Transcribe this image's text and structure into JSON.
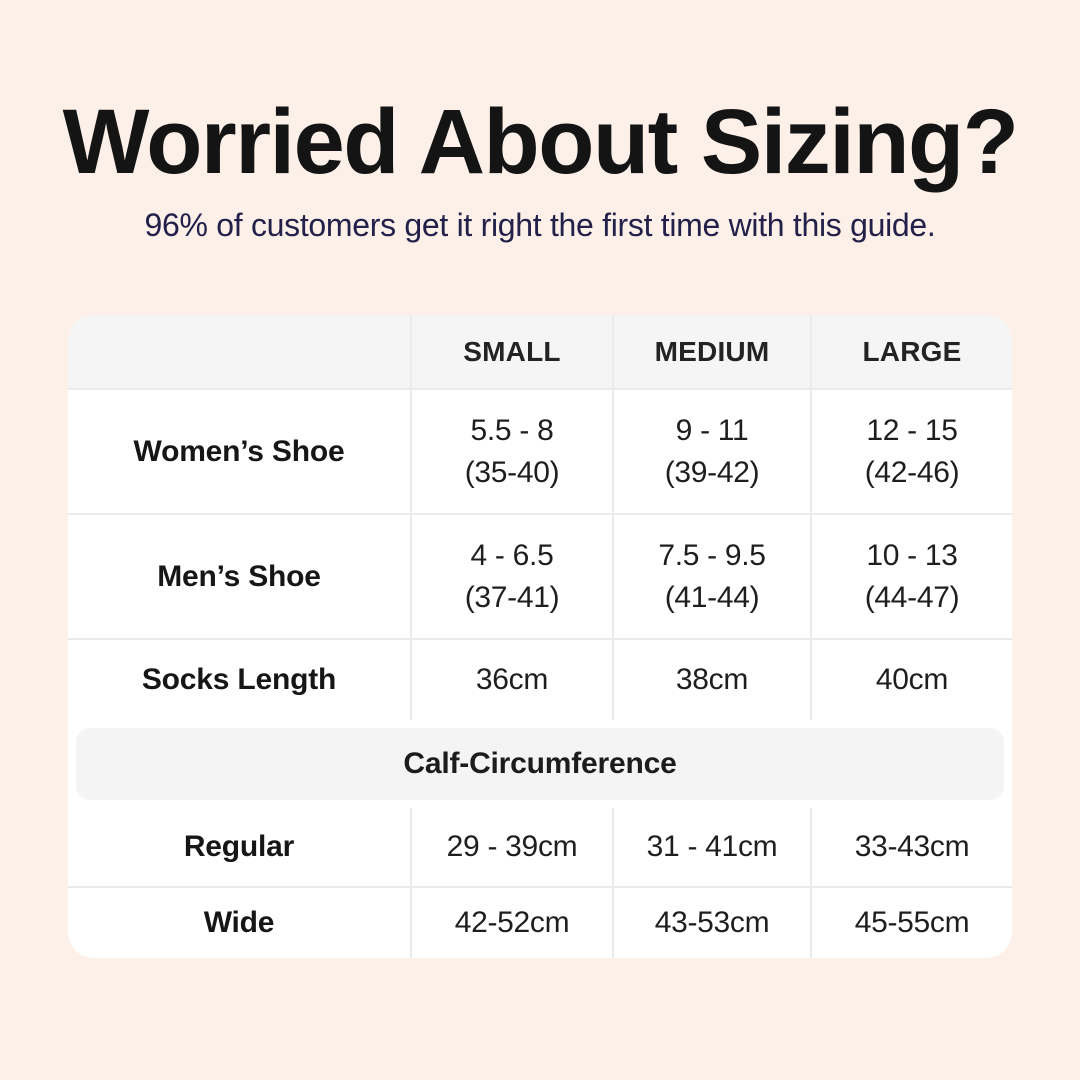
{
  "page": {
    "background_color": "#fcf0e8",
    "table_background": "#ffffff",
    "header_row_color": "#f5f5f6",
    "band_color": "#f4f4f5",
    "divider_color": "#ebebed",
    "title_color": "#141414",
    "subtitle_color": "#23204a"
  },
  "header": {
    "title": "Worried About Sizing?",
    "subtitle": "96% of customers get it right the first time with this guide."
  },
  "chart_data": {
    "type": "table",
    "title": "Worried About Sizing?",
    "subtitle": "96% of customers get it right the first time with this guide.",
    "columns": [
      "",
      "SMALL",
      "MEDIUM",
      "LARGE"
    ],
    "rows": [
      {
        "label": "Women’s Shoe",
        "cells": [
          [
            "5.5 - 8",
            "(35-40)"
          ],
          [
            "9 - 11",
            "(39-42)"
          ],
          [
            "12 - 15",
            "(42-46)"
          ]
        ]
      },
      {
        "label": "Men’s Shoe",
        "cells": [
          [
            "4 - 6.5",
            "(37-41)"
          ],
          [
            "7.5 - 9.5",
            "(41-44)"
          ],
          [
            "10 - 13",
            "(44-47)"
          ]
        ]
      },
      {
        "label": "Socks Length",
        "cells": [
          [
            "36cm"
          ],
          [
            "38cm"
          ],
          [
            "40cm"
          ]
        ]
      }
    ],
    "section_header": "Calf-Circumference",
    "calf_rows": [
      {
        "label": "Regular",
        "cells": [
          [
            "29 - 39cm"
          ],
          [
            "31 - 41cm"
          ],
          [
            "33-43cm"
          ]
        ]
      },
      {
        "label": "Wide",
        "cells": [
          [
            "42-52cm"
          ],
          [
            "43-53cm"
          ],
          [
            "45-55cm"
          ]
        ]
      }
    ]
  }
}
